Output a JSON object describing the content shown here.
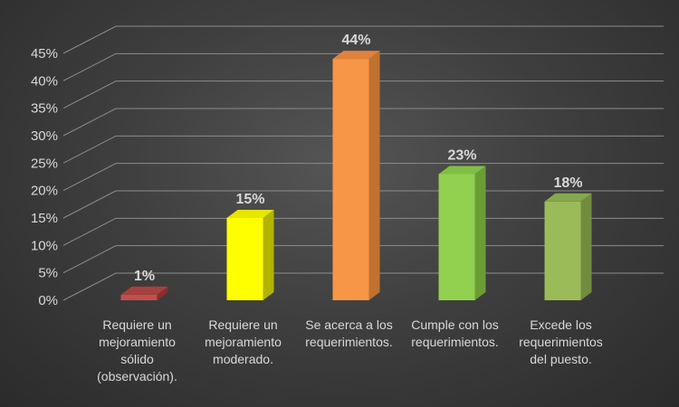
{
  "chart_data": {
    "type": "bar",
    "title": "",
    "xlabel": "",
    "ylabel": "",
    "categories": [
      [
        "Requiere un",
        "mejoramiento",
        "sólido",
        "(observación)."
      ],
      [
        "Requiere un",
        "mejoramiento",
        "moderado."
      ],
      [
        "Se acerca a los",
        "requerimientos."
      ],
      [
        "Cumple con los",
        "requerimientos."
      ],
      [
        "Excede los",
        "requerimientos",
        "del puesto."
      ]
    ],
    "values": [
      1,
      15,
      44,
      23,
      18
    ],
    "data_labels": [
      "1%",
      "15%",
      "44%",
      "23%",
      "18%"
    ],
    "ylim": [
      0,
      45
    ],
    "yticks": [
      0,
      5,
      10,
      15,
      20,
      25,
      30,
      35,
      40,
      45
    ],
    "ytick_labels": [
      "0%",
      "5%",
      "10%",
      "15%",
      "20%",
      "25%",
      "30%",
      "35%",
      "40%",
      "45%"
    ],
    "grid": true,
    "legend": "none",
    "colors": [
      "#c0504d",
      "#ffff00",
      "#f79646",
      "#92d050",
      "#9bbb59"
    ],
    "side_colors": [
      "#8c2e2b",
      "#b3b300",
      "#c0722f",
      "#6a9e35",
      "#728c3f"
    ],
    "top_colors": [
      "#a8403d",
      "#e6e600",
      "#e0823c",
      "#7fbf43",
      "#86a84c"
    ]
  }
}
